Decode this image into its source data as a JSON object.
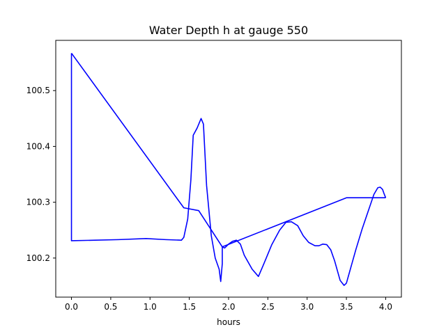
{
  "chart_data": {
    "type": "line",
    "title": "Water Depth h at gauge 550",
    "xlabel": "hours",
    "ylabel": "",
    "xlim": [
      -0.2,
      4.2
    ],
    "ylim": [
      100.13,
      100.59
    ],
    "xticks": [
      0.0,
      0.5,
      1.0,
      1.5,
      2.0,
      2.5,
      3.0,
      3.5,
      4.0
    ],
    "xtick_labels": [
      "0.0",
      "0.5",
      "1.0",
      "1.5",
      "2.0",
      "2.5",
      "3.0",
      "3.5",
      "4.0"
    ],
    "yticks": [
      100.2,
      100.3,
      100.4,
      100.5
    ],
    "ytick_labels": [
      "100.2",
      "100.3",
      "100.4",
      "100.5"
    ],
    "grid": false,
    "series": [
      {
        "color": "#0000ff",
        "x": [
          0.0,
          0.0,
          0.3,
          0.6,
          0.95,
          1.2,
          1.4,
          1.43,
          1.48,
          1.52,
          1.55,
          1.6,
          1.65,
          1.68,
          1.72,
          1.78,
          1.83,
          1.88,
          1.9,
          1.92,
          1.92,
          1.92,
          1.95,
          2.0,
          2.05,
          2.1,
          2.15,
          2.2,
          2.3,
          2.38,
          2.45,
          2.55,
          2.65,
          2.73,
          2.8,
          2.88,
          2.95,
          3.02,
          3.1,
          3.15,
          3.2,
          3.25,
          3.3,
          3.35,
          3.42,
          3.47,
          3.5,
          3.55,
          3.62,
          3.7,
          3.78,
          3.85,
          3.9,
          3.93,
          3.96,
          3.98,
          4.0,
          4.0,
          4.0
        ],
        "y": [
          100.567,
          100.231,
          100.232,
          100.233,
          100.235,
          100.233,
          100.232,
          100.237,
          100.27,
          100.34,
          100.42,
          100.433,
          100.45,
          100.44,
          100.33,
          100.24,
          100.2,
          100.18,
          100.158,
          100.19,
          100.22,
          100.22,
          100.218,
          100.225,
          100.23,
          100.232,
          100.225,
          100.205,
          100.18,
          100.167,
          100.19,
          100.224,
          100.25,
          100.264,
          100.265,
          100.258,
          100.24,
          100.228,
          100.222,
          100.222,
          100.225,
          100.224,
          100.215,
          100.195,
          100.16,
          100.151,
          100.155,
          100.18,
          100.215,
          100.252,
          100.285,
          100.314,
          100.326,
          100.327,
          100.323,
          100.315,
          100.308,
          100.308,
          100.308
        ]
      },
      {
        "color": "#0000ff",
        "x": [
          4.0,
          3.98,
          3.5,
          1.92,
          1.62,
          1.43,
          0.0,
          0.0
        ],
        "y": [
          100.308,
          100.308,
          100.308,
          100.22,
          100.285,
          100.29,
          100.567,
          100.567
        ]
      }
    ]
  }
}
